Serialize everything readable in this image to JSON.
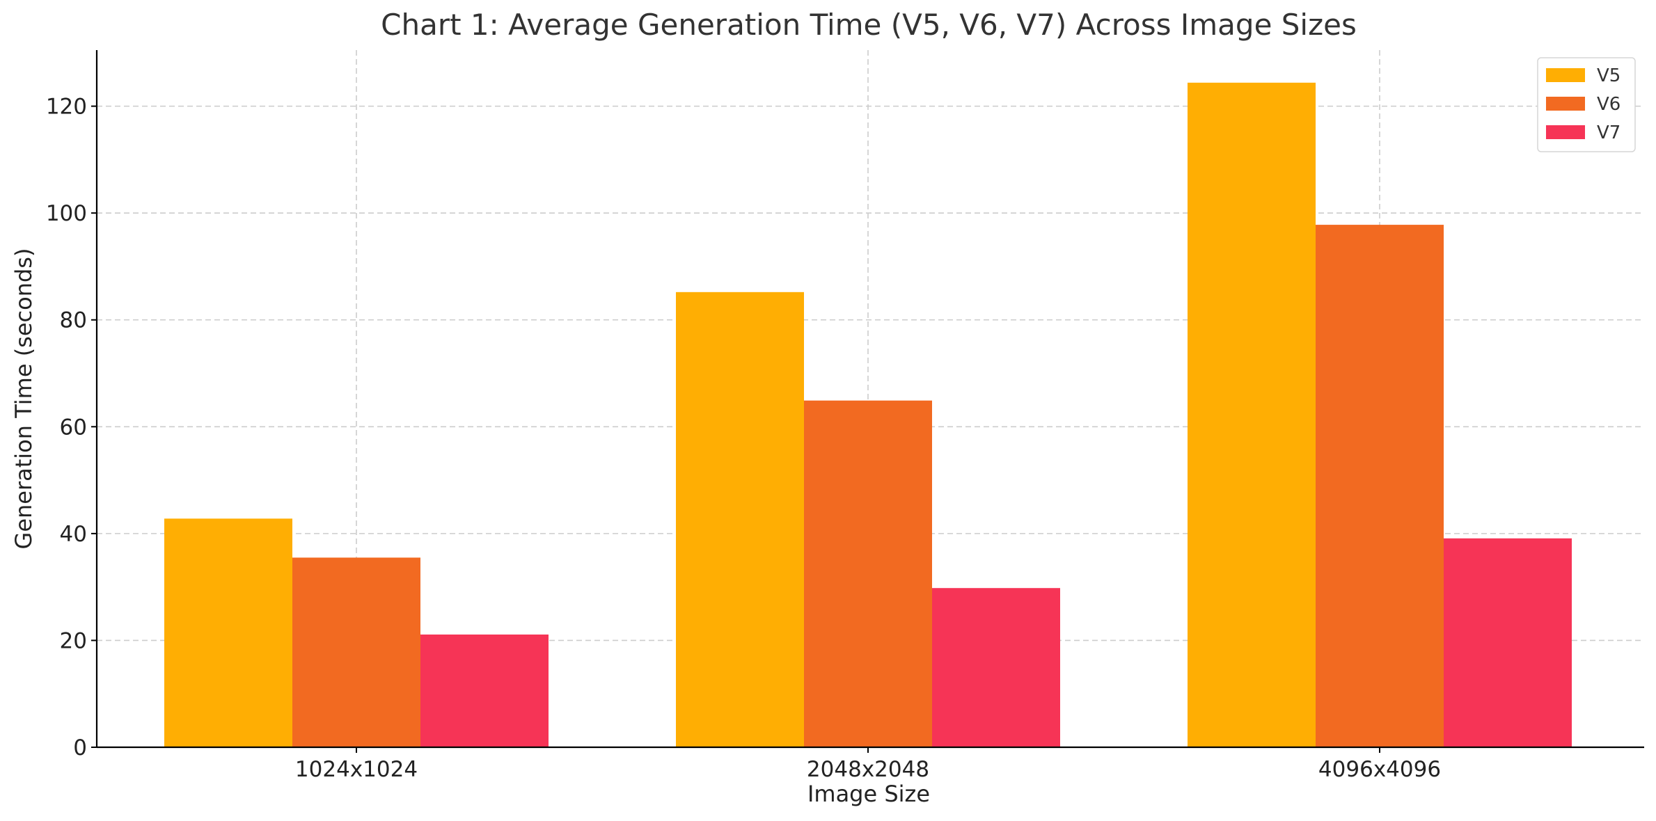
{
  "chart_data": {
    "type": "bar",
    "title": "Chart 1: Average Generation Time (V5, V6, V7) Across Image Sizes",
    "xlabel": "Image Size",
    "ylabel": "Generation Time (seconds)",
    "categories": [
      "1024x1024",
      "2048x2048",
      "4096x4096"
    ],
    "series": [
      {
        "name": "V5",
        "color": "#FFAE03",
        "values": [
          42.8,
          85.2,
          124.4
        ]
      },
      {
        "name": "V6",
        "color": "#F26A21",
        "values": [
          35.5,
          64.9,
          97.8
        ]
      },
      {
        "name": "V7",
        "color": "#F63456",
        "values": [
          21.1,
          29.8,
          39.1
        ]
      }
    ],
    "ylim": [
      0,
      130.5
    ],
    "yticks": [
      "0",
      "20",
      "40",
      "60",
      "80",
      "100",
      "120"
    ],
    "grid": true,
    "legend_position": "top-right"
  }
}
